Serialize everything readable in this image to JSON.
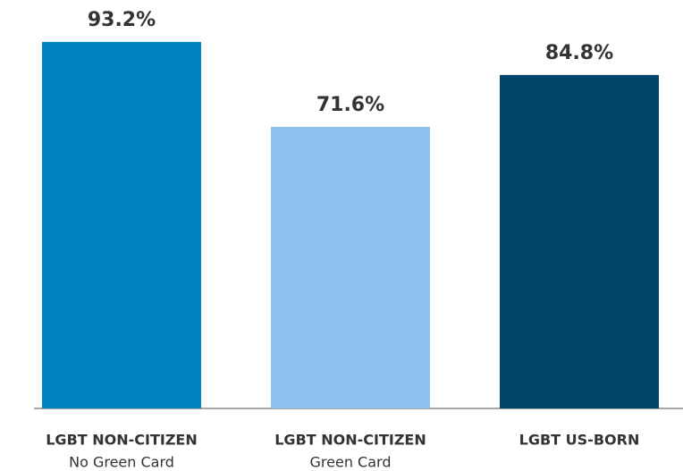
{
  "chart_data": {
    "type": "bar",
    "categories": [
      [
        "LGBT NON-CITIZEN",
        "No Green Card"
      ],
      [
        "LGBT NON-CITIZEN",
        "Green Card"
      ],
      [
        "LGBT US-BORN"
      ]
    ],
    "values": [
      93.2,
      71.6,
      84.8
    ],
    "value_labels": [
      "93.2%",
      "71.6%",
      "84.8%"
    ],
    "colors": [
      "#0083be",
      "#8cc1ed",
      "#004669"
    ],
    "ylim": [
      0,
      100
    ]
  }
}
